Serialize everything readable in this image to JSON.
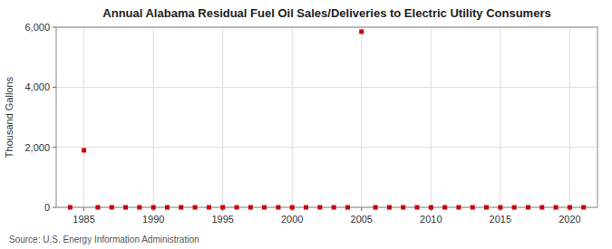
{
  "chart_data": {
    "type": "scatter",
    "title": "Annual Alabama Residual Fuel Oil Sales/Deliveries to Electric Utility Consumers",
    "ylabel": "Thousand Gallons",
    "source": "Source: U.S. Energy Information Administration",
    "x": [
      1984,
      1985,
      1986,
      1987,
      1988,
      1989,
      1990,
      1991,
      1992,
      1993,
      1994,
      1995,
      1996,
      1997,
      1998,
      1999,
      2000,
      2001,
      2002,
      2003,
      2004,
      2005,
      2006,
      2007,
      2008,
      2009,
      2010,
      2011,
      2012,
      2013,
      2014,
      2015,
      2016,
      2017,
      2018,
      2019,
      2020,
      2021
    ],
    "values": [
      0,
      1900,
      0,
      0,
      0,
      0,
      0,
      0,
      0,
      0,
      0,
      0,
      0,
      0,
      0,
      0,
      0,
      0,
      0,
      0,
      0,
      5850,
      0,
      0,
      0,
      0,
      0,
      0,
      0,
      0,
      0,
      0,
      0,
      0,
      0,
      0,
      0,
      0
    ],
    "color": "#cc0000",
    "marker": "square",
    "xlim": [
      1983,
      2022
    ],
    "ylim": [
      0,
      6000
    ],
    "xticks": [
      1985,
      1990,
      1995,
      2000,
      2005,
      2010,
      2015,
      2020
    ],
    "yticks": [
      0,
      {
        "value": 2000,
        "label": "2,000"
      },
      {
        "value": 4000,
        "label": "4,000"
      },
      {
        "value": 6000,
        "label": "6,000"
      }
    ],
    "grid": true
  }
}
